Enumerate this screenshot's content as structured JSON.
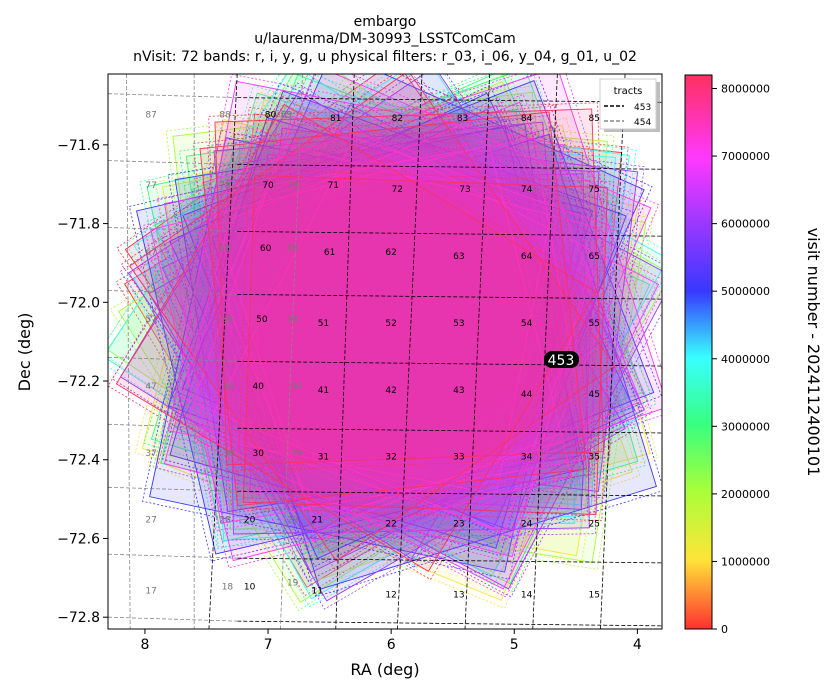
{
  "chart_data": {
    "type": "scatter",
    "title_lines": [
      "embargo",
      "u/laurenma/DM-30993_LSSTComCam",
      "nVisit: 72  bands: r, i, y, g, u  physical filters: r_03, i_06, y_04, g_01, u_02"
    ],
    "xlabel": "RA (deg)",
    "ylabel": "Dec (deg)",
    "xlim": [
      8.3,
      3.8
    ],
    "ylim": [
      -72.83,
      -71.42
    ],
    "x_ticks": [
      8,
      7,
      6,
      5,
      4
    ],
    "y_ticks": [
      -71.6,
      -71.8,
      -72.0,
      -72.2,
      -72.4,
      -72.6,
      -72.8
    ],
    "colorbar": {
      "label": "visit number - 2024112400101",
      "range": [
        0,
        8200000
      ],
      "ticks": [
        0,
        1000000,
        2000000,
        3000000,
        4000000,
        5000000,
        6000000,
        7000000,
        8000000
      ]
    },
    "legend": {
      "title": "tracts",
      "placement": "top-right",
      "entries": [
        "453",
        "454"
      ]
    },
    "tract_label": "453",
    "patches_453": [
      {
        "id": "10",
        "ra": 7.15,
        "dec": -72.73
      },
      {
        "id": "11",
        "ra": 6.6,
        "dec": -72.74
      },
      {
        "id": "12",
        "ra": 6.0,
        "dec": -72.75
      },
      {
        "id": "13",
        "ra": 5.45,
        "dec": -72.75
      },
      {
        "id": "14",
        "ra": 4.9,
        "dec": -72.75
      },
      {
        "id": "15",
        "ra": 4.35,
        "dec": -72.75
      },
      {
        "id": "20",
        "ra": 7.15,
        "dec": -72.56
      },
      {
        "id": "21",
        "ra": 6.6,
        "dec": -72.56
      },
      {
        "id": "22",
        "ra": 6.0,
        "dec": -72.57
      },
      {
        "id": "23",
        "ra": 5.45,
        "dec": -72.57
      },
      {
        "id": "24",
        "ra": 4.9,
        "dec": -72.57
      },
      {
        "id": "25",
        "ra": 4.35,
        "dec": -72.57
      },
      {
        "id": "30",
        "ra": 7.08,
        "dec": -72.39
      },
      {
        "id": "31",
        "ra": 6.55,
        "dec": -72.4
      },
      {
        "id": "32",
        "ra": 6.0,
        "dec": -72.4
      },
      {
        "id": "33",
        "ra": 5.45,
        "dec": -72.4
      },
      {
        "id": "34",
        "ra": 4.9,
        "dec": -72.4
      },
      {
        "id": "35",
        "ra": 4.35,
        "dec": -72.4
      },
      {
        "id": "40",
        "ra": 7.08,
        "dec": -72.22
      },
      {
        "id": "41",
        "ra": 6.55,
        "dec": -72.23
      },
      {
        "id": "42",
        "ra": 6.0,
        "dec": -72.23
      },
      {
        "id": "43",
        "ra": 5.45,
        "dec": -72.23
      },
      {
        "id": "44",
        "ra": 4.9,
        "dec": -72.24
      },
      {
        "id": "45",
        "ra": 4.35,
        "dec": -72.24
      },
      {
        "id": "50",
        "ra": 7.05,
        "dec": -72.05
      },
      {
        "id": "51",
        "ra": 6.55,
        "dec": -72.06
      },
      {
        "id": "52",
        "ra": 6.0,
        "dec": -72.06
      },
      {
        "id": "53",
        "ra": 5.45,
        "dec": -72.06
      },
      {
        "id": "54",
        "ra": 4.9,
        "dec": -72.06
      },
      {
        "id": "55",
        "ra": 4.35,
        "dec": -72.06
      },
      {
        "id": "60",
        "ra": 7.02,
        "dec": -71.87
      },
      {
        "id": "61",
        "ra": 6.5,
        "dec": -71.88
      },
      {
        "id": "62",
        "ra": 6.0,
        "dec": -71.88
      },
      {
        "id": "63",
        "ra": 5.45,
        "dec": -71.89
      },
      {
        "id": "64",
        "ra": 4.9,
        "dec": -71.89
      },
      {
        "id": "65",
        "ra": 4.35,
        "dec": -71.89
      },
      {
        "id": "70",
        "ra": 7.0,
        "dec": -71.71
      },
      {
        "id": "71",
        "ra": 6.47,
        "dec": -71.71
      },
      {
        "id": "72",
        "ra": 5.95,
        "dec": -71.72
      },
      {
        "id": "73",
        "ra": 5.4,
        "dec": -71.72
      },
      {
        "id": "74",
        "ra": 4.9,
        "dec": -71.72
      },
      {
        "id": "75",
        "ra": 4.35,
        "dec": -71.72
      },
      {
        "id": "80",
        "ra": 6.98,
        "dec": -71.53
      },
      {
        "id": "81",
        "ra": 6.45,
        "dec": -71.54
      },
      {
        "id": "82",
        "ra": 5.95,
        "dec": -71.54
      },
      {
        "id": "83",
        "ra": 5.42,
        "dec": -71.54
      },
      {
        "id": "84",
        "ra": 4.9,
        "dec": -71.54
      },
      {
        "id": "85",
        "ra": 4.35,
        "dec": -71.54
      }
    ],
    "patches_454": [
      {
        "id": "17",
        "ra": 7.95,
        "dec": -72.74
      },
      {
        "id": "18",
        "ra": 7.33,
        "dec": -72.73
      },
      {
        "id": "19",
        "ra": 6.8,
        "dec": -72.72
      },
      {
        "id": "27",
        "ra": 7.95,
        "dec": -72.56
      },
      {
        "id": "28",
        "ra": 7.35,
        "dec": -72.56
      },
      {
        "id": "29",
        "ra": 6.8,
        "dec": -72.56
      },
      {
        "id": "37",
        "ra": 7.95,
        "dec": -72.39
      },
      {
        "id": "38",
        "ra": 7.32,
        "dec": -72.39
      },
      {
        "id": "39",
        "ra": 6.77,
        "dec": -72.39
      },
      {
        "id": "47",
        "ra": 7.95,
        "dec": -72.22
      },
      {
        "id": "48",
        "ra": 7.32,
        "dec": -72.22
      },
      {
        "id": "49",
        "ra": 6.77,
        "dec": -72.22
      },
      {
        "id": "57",
        "ra": 7.95,
        "dec": -72.05
      },
      {
        "id": "58",
        "ra": 7.33,
        "dec": -72.05
      },
      {
        "id": "59",
        "ra": 6.8,
        "dec": -72.05
      },
      {
        "id": "67",
        "ra": 7.95,
        "dec": -71.88
      },
      {
        "id": "68",
        "ra": 7.35,
        "dec": -71.87
      },
      {
        "id": "69",
        "ra": 6.8,
        "dec": -71.87
      },
      {
        "id": "77",
        "ra": 7.95,
        "dec": -71.71
      },
      {
        "id": "78",
        "ra": 7.35,
        "dec": -71.71
      },
      {
        "id": "79",
        "ra": 6.8,
        "dec": -71.71
      },
      {
        "id": "87",
        "ra": 7.95,
        "dec": -71.53
      },
      {
        "id": "88",
        "ra": 7.35,
        "dec": -71.53
      },
      {
        "id": "89",
        "ra": 6.85,
        "dec": -71.53
      }
    ],
    "visit_center": {
      "ra": 5.95,
      "dec": -72.06
    },
    "visit_count": 72
  }
}
